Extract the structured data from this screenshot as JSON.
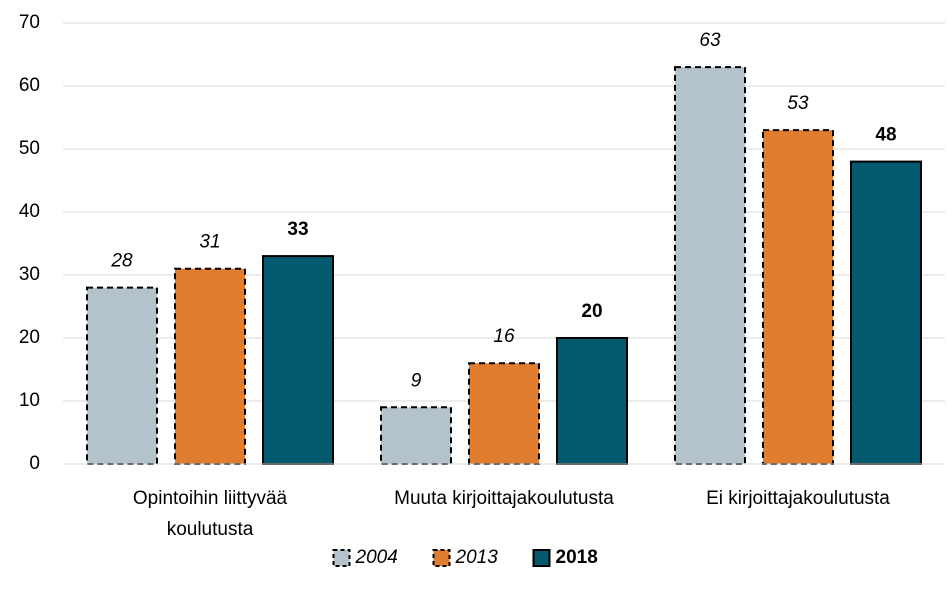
{
  "chart_data": {
    "type": "bar",
    "categories": [
      "Opintoihin liittyvää koulutusta",
      "Muuta kirjoittajakoulutusta",
      "Ei kirjoittajakoulutusta"
    ],
    "series": [
      {
        "name": "2004",
        "color": "#b4c3cb",
        "border": "dashed",
        "label_style": "italic",
        "values": [
          28,
          9,
          63
        ]
      },
      {
        "name": "2013",
        "color": "#e07d2e",
        "border": "dashed",
        "label_style": "italic",
        "values": [
          31,
          16,
          53
        ]
      },
      {
        "name": "2018",
        "color": "#035a6e",
        "border": "solid",
        "label_style": "bold",
        "values": [
          33,
          20,
          48
        ]
      }
    ],
    "ylim": [
      0,
      70
    ],
    "yticks": [
      0,
      10,
      20,
      30,
      40,
      50,
      60,
      70
    ],
    "grid": true,
    "legend": "bottom"
  }
}
